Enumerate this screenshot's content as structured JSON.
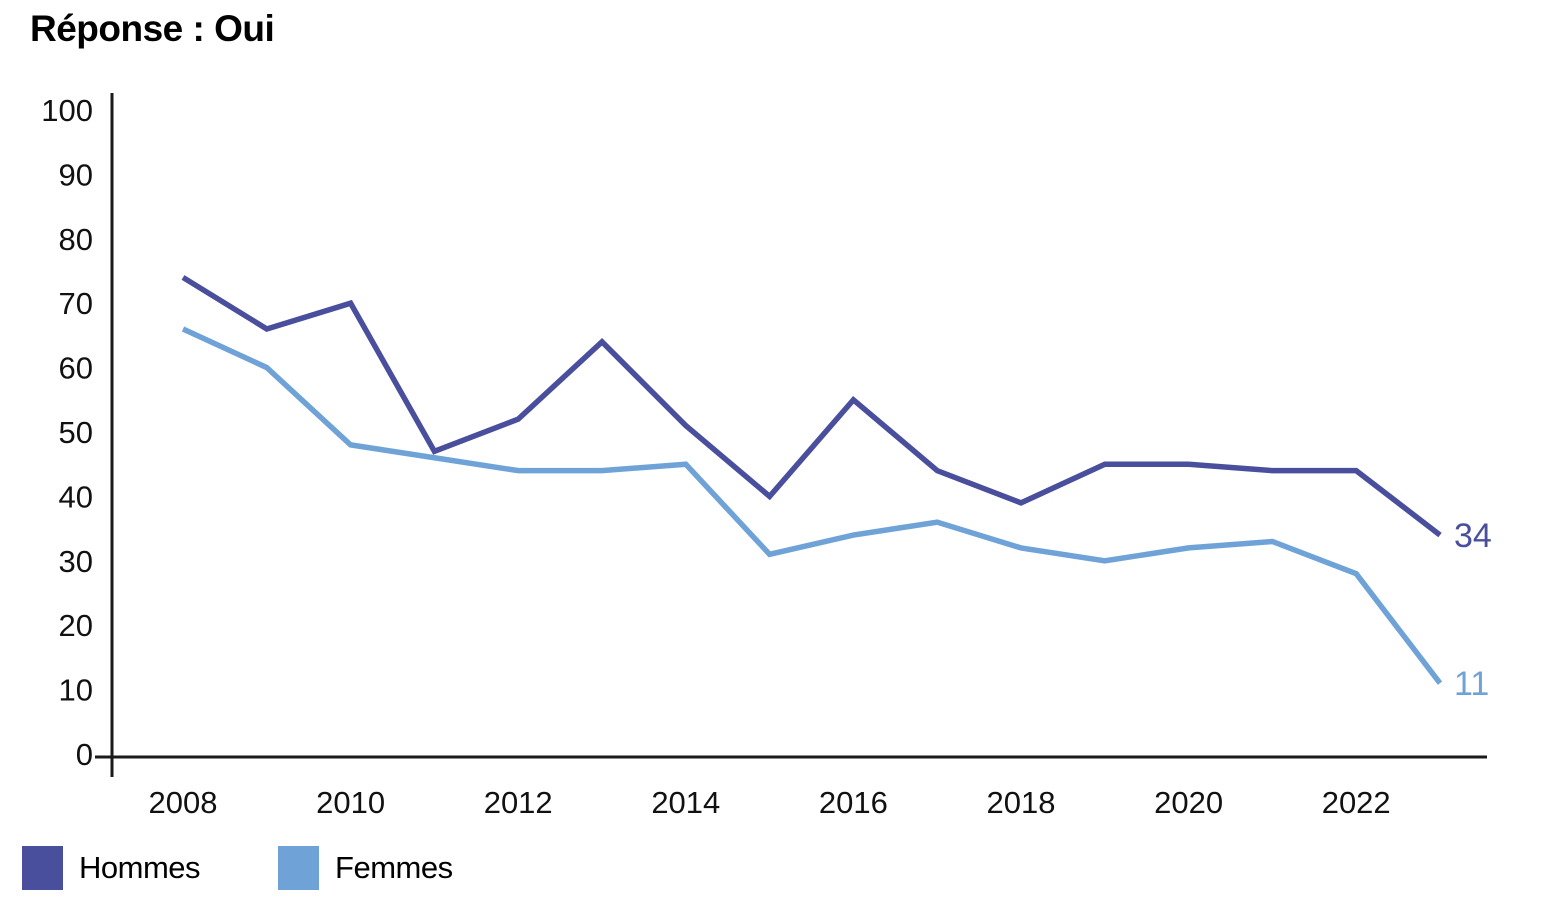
{
  "title": "Réponse : Oui",
  "chart_data": {
    "type": "line",
    "title": "Réponse : Oui",
    "x": [
      2008,
      2009,
      2010,
      2011,
      2012,
      2013,
      2014,
      2015,
      2016,
      2017,
      2018,
      2019,
      2020,
      2021,
      2022,
      2023
    ],
    "series": [
      {
        "name": "Hommes",
        "color": "#4a4f9d",
        "values": [
          74,
          66,
          70,
          47,
          52,
          64,
          51,
          40,
          55,
          44,
          39,
          45,
          45,
          44,
          44,
          34
        ],
        "end_label": "34"
      },
      {
        "name": "Femmes",
        "color": "#6fa3d8",
        "values": [
          66,
          60,
          48,
          46,
          44,
          44,
          45,
          31,
          34,
          36,
          32,
          30,
          32,
          33,
          28,
          11
        ],
        "end_label": "11"
      }
    ],
    "ylim": [
      0,
      100
    ],
    "yticks": [
      0,
      10,
      20,
      30,
      40,
      50,
      60,
      70,
      80,
      90,
      100
    ],
    "xticks": [
      2008,
      2010,
      2012,
      2014,
      2016,
      2018,
      2020,
      2022
    ],
    "grid": false,
    "legend_position": "bottom-left",
    "axis_color": "#1a1a1a"
  },
  "legend": {
    "items": [
      {
        "label": "Hommes",
        "color": "#4a4f9d"
      },
      {
        "label": "Femmes",
        "color": "#6fa3d8"
      }
    ]
  }
}
